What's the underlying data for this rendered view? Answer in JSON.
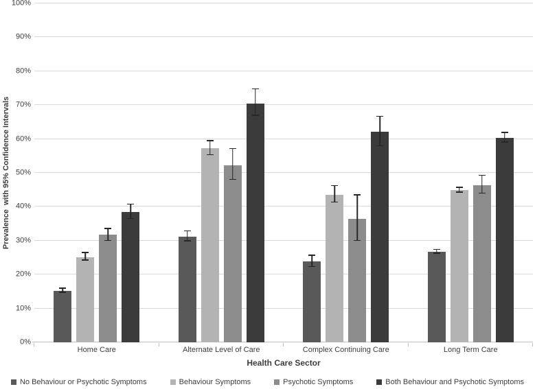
{
  "chart_data": {
    "type": "bar",
    "title": "",
    "xlabel": "Health Care Sector",
    "ylabel": "Prevalence  with 95% Confidence Intervals",
    "ylim": [
      0,
      100
    ],
    "yticks": [
      "0%",
      "10%",
      "20%",
      "30%",
      "40%",
      "50%",
      "60%",
      "70%",
      "80%",
      "90%",
      "100%"
    ],
    "grid": true,
    "legend_position": "bottom",
    "error_bars": "95% confidence intervals",
    "categories": [
      "Home Care",
      "Alternate Level of Care",
      "Complex Continuing Care",
      "Long Term Care"
    ],
    "series": [
      {
        "name": "No Behaviour or Psychotic Symptoms",
        "color": "#595959",
        "values": [
          15.2,
          31.1,
          23.9,
          26.7
        ],
        "ci_low": [
          14.6,
          29.8,
          22.2,
          26.2
        ],
        "ci_high": [
          15.8,
          32.7,
          25.6,
          27.3
        ]
      },
      {
        "name": "Behaviour Symptoms",
        "color": "#b3b3b3",
        "values": [
          25.2,
          57.2,
          43.6,
          44.9
        ],
        "ci_low": [
          24.1,
          55.2,
          41.2,
          44.2
        ],
        "ci_high": [
          26.4,
          59.4,
          46.1,
          45.6
        ]
      },
      {
        "name": "Psychotic Symptoms",
        "color": "#8c8c8c",
        "values": [
          31.7,
          52.3,
          36.4,
          46.4
        ],
        "ci_low": [
          29.9,
          47.9,
          29.9,
          43.9
        ],
        "ci_high": [
          33.5,
          57.0,
          43.4,
          49.1
        ]
      },
      {
        "name": "Both Behaviour and Psychotic Symptoms",
        "color": "#3b3b3b",
        "values": [
          38.5,
          70.5,
          62.1,
          60.3
        ],
        "ci_low": [
          36.4,
          66.9,
          57.8,
          59.0
        ],
        "ci_high": [
          40.6,
          74.6,
          66.6,
          61.8
        ]
      }
    ]
  },
  "colors": {
    "gridline": "#d9d9d9",
    "axis_line": "#bfbfbf",
    "error_bar": "#262626",
    "text": "#3d3d3d",
    "background": "#ffffff"
  }
}
